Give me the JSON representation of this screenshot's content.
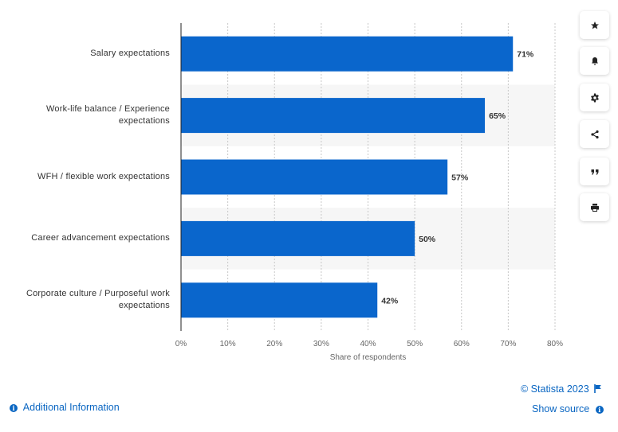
{
  "chart_data": {
    "type": "bar",
    "orientation": "horizontal",
    "categories": [
      "Salary expectations",
      "Work-life balance / Experience expectations",
      "WFH / flexible work expectations",
      "Career advancement expectations",
      "Corporate culture / Purposeful work expectations"
    ],
    "category_lines": [
      [
        "Salary expectations"
      ],
      [
        "Work-life balance / Experience",
        "expectations"
      ],
      [
        "WFH / flexible work expectations"
      ],
      [
        "Career advancement expectations"
      ],
      [
        "Corporate culture / Purposeful work",
        "expectations"
      ]
    ],
    "values": [
      71,
      65,
      57,
      50,
      42
    ],
    "value_labels": [
      "71%",
      "65%",
      "57%",
      "50%",
      "42%"
    ],
    "xlabel": "Share of respondents",
    "xlim": [
      0,
      80
    ],
    "ticks": [
      0,
      10,
      20,
      30,
      40,
      50,
      60,
      70,
      80
    ],
    "tick_labels": [
      "0%",
      "10%",
      "20%",
      "30%",
      "40%",
      "50%",
      "60%",
      "70%",
      "80%"
    ],
    "grid": true,
    "bar_color": "#0a66cc",
    "alt_band_color": "#f6f6f6"
  },
  "sidebar": {
    "buttons": [
      {
        "name": "favorite",
        "icon": "star-icon"
      },
      {
        "name": "notification",
        "icon": "bell-icon"
      },
      {
        "name": "settings",
        "icon": "gear-icon"
      },
      {
        "name": "share",
        "icon": "share-icon"
      },
      {
        "name": "cite",
        "icon": "quote-icon"
      },
      {
        "name": "print",
        "icon": "print-icon"
      }
    ]
  },
  "footer": {
    "copyright": "© Statista 2023",
    "show_source": "Show source",
    "additional_info": "Additional Information",
    "accent_color": "#0a66c2"
  }
}
